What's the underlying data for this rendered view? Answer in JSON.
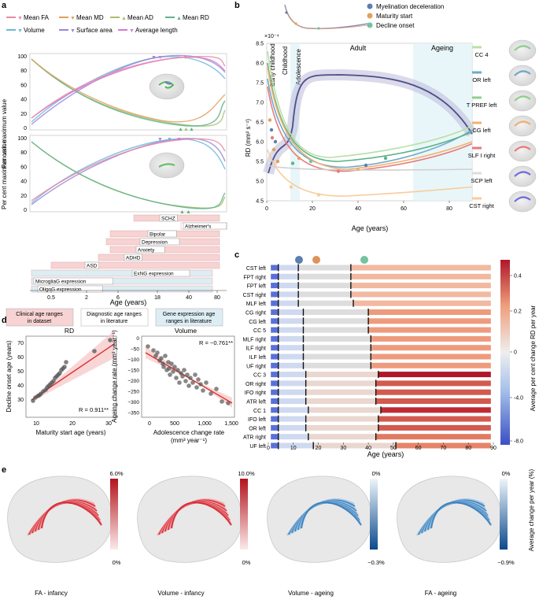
{
  "panels": {
    "a": "a",
    "b": "b",
    "c": "c",
    "d": "d",
    "e": "e"
  },
  "panel_a": {
    "legend": [
      {
        "label": "Mean FA",
        "color": "#e88aa6",
        "marker": "▼"
      },
      {
        "label": "Mean MD",
        "color": "#e0a060",
        "marker": "▼"
      },
      {
        "label": "Mean AD",
        "color": "#a9c06a",
        "marker": "▲"
      },
      {
        "label": "Mean RD",
        "color": "#5db38a",
        "marker": "▲"
      },
      {
        "label": "Volume",
        "color": "#6fb8d8",
        "marker": "▼"
      },
      {
        "label": "Surface area",
        "color": "#9a86d6",
        "marker": "▼"
      },
      {
        "label": "Average length",
        "color": "#d27ad6",
        "marker": "▼"
      }
    ],
    "ylabel": "Per cent maximum value",
    "yticks": [
      "0",
      "20",
      "40",
      "60",
      "80",
      "100"
    ],
    "xticks": [
      "0.5",
      "2",
      "6",
      "18",
      "40",
      "80"
    ],
    "xlabel": "Age (years)",
    "ranges": [
      {
        "label": "SCHZ"
      },
      {
        "label": "Alzheimer's"
      },
      {
        "label": "Bipolar"
      },
      {
        "label": "Depression"
      },
      {
        "label": "Anxiety"
      },
      {
        "label": "ADHD"
      },
      {
        "label": "ASD"
      },
      {
        "label": "ExNG expression"
      },
      {
        "label": "MicrogliaG expression"
      },
      {
        "label": "OligoG expression"
      }
    ],
    "range_legend": [
      {
        "label": "Clinical age ranges in dataset",
        "color": "#f7d3d3"
      },
      {
        "label": "Diagnostic age ranges in literature",
        "color": "#ffffff"
      },
      {
        "label": "Gene expression age ranges in literature",
        "color": "#dcedf3"
      }
    ]
  },
  "panel_b": {
    "legend": [
      {
        "label": "Myelination deceleration",
        "color": "#5a7fb0"
      },
      {
        "label": "Maturity start",
        "color": "#e0a060"
      },
      {
        "label": "Decline onset",
        "color": "#74c2a0"
      }
    ],
    "scale_note": "×10⁻⁴",
    "yticks": [
      "4.5",
      "5.0",
      "5.5",
      "6.0",
      "6.5",
      "7.0",
      "7.5",
      "8.0",
      "8.5"
    ],
    "xticks": [
      "0",
      "20",
      "40",
      "60",
      "80"
    ],
    "ylabel": "RD (mm² s⁻¹)",
    "xlabel": "Age (years)",
    "stages": [
      "Early childhood",
      "Childhood",
      "Adolescence",
      "Adult",
      "Ageing"
    ],
    "tracts": [
      "CC 4",
      "OR left",
      "T PREF left",
      "CG left",
      "SLF I right",
      "SCP left",
      "CST right"
    ],
    "tract_colors": [
      "#b9e0a6",
      "#6fa9c8",
      "#8fcf8f",
      "#f2b070",
      "#e87c7c",
      "#dcdcdc",
      "#f8cc9c"
    ]
  },
  "panel_c": {
    "rows": [
      "CST left",
      "FPT right",
      "FPT left",
      "CST right",
      "MLF left",
      "CG right",
      "CG left",
      "CC 5",
      "MLF right",
      "ILF right",
      "ILF left",
      "UF right",
      "CC 3",
      "OR right",
      "IFO right",
      "ATR left",
      "CC 1",
      "IFO left",
      "OR left",
      "ATR right",
      "UF left"
    ],
    "xticks": [
      "0",
      "10",
      "20",
      "30",
      "40",
      "50",
      "60",
      "70",
      "80",
      "90"
    ],
    "xlabel": "Age (years)",
    "colorbar_ticks": [
      "0.4",
      "0.2",
      "0",
      "-4.0",
      "-8.0"
    ],
    "colorbar_label": "Average per cent change RD per year",
    "header_dots": [
      "#5a7fb0",
      "#e0925a",
      "#74c2a0"
    ]
  },
  "panel_d": {
    "left": {
      "title": "RD",
      "xlabel": "Maturity start age (years)",
      "ylabel": "Decline onset age (years)",
      "r_text": "R = 0.911**",
      "xticks": [
        "10",
        "20",
        "30"
      ],
      "yticks": [
        "30",
        "40",
        "50",
        "60",
        "70"
      ]
    },
    "right": {
      "title": "Volume",
      "xlabel": "Adolescence change rate",
      "xlabel2": "(mm³ year⁻¹)",
      "ylabel": "Ageing change rate (mm³ year⁻¹)",
      "r_text": "R = −0.761**",
      "xticks": [
        "0",
        "500",
        "1,000",
        "1,500"
      ],
      "yticks": [
        "0",
        "−50",
        "−100",
        "−150",
        "−200",
        "−250",
        "−300",
        "−350"
      ]
    }
  },
  "panel_e": {
    "items": [
      {
        "caption": "FA - infancy",
        "top": "6.0%",
        "bottom": "0%"
      },
      {
        "caption": "Volume - infancy",
        "top": "10.0%",
        "bottom": "0%"
      },
      {
        "caption": "Volume - ageing",
        "top": "0%",
        "bottom": "−0.3%"
      },
      {
        "caption": "FA - ageing",
        "top": "0%",
        "bottom": "−0.9%"
      }
    ],
    "side_label": "Average change per year (%)"
  }
}
